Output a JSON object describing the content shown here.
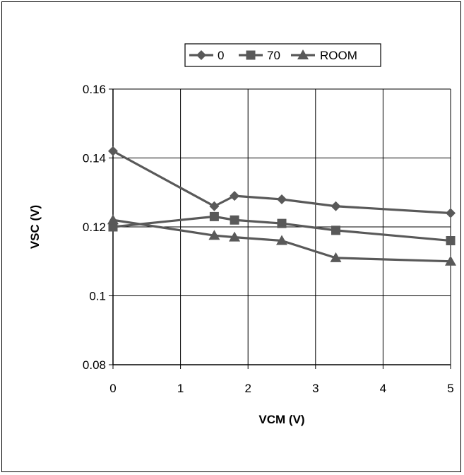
{
  "chart_data": {
    "type": "line",
    "title": "",
    "xlabel": "VCM (V)",
    "ylabel": "VSC (V)",
    "xlim": [
      0,
      5
    ],
    "ylim": [
      0.08,
      0.16
    ],
    "x_ticks": [
      "0",
      "1",
      "2",
      "3",
      "4",
      "5"
    ],
    "y_ticks": [
      "0.08",
      "0.1",
      "0.12",
      "0.14",
      "0.16"
    ],
    "grid": true,
    "legend_placement": "top",
    "series": [
      {
        "name": "0",
        "marker": "diamond",
        "color": "#595959",
        "x": [
          0,
          1.5,
          1.8,
          2.5,
          3.3,
          5
        ],
        "y": [
          0.142,
          0.126,
          0.129,
          0.128,
          0.126,
          0.124
        ]
      },
      {
        "name": "70",
        "marker": "square",
        "color": "#595959",
        "x": [
          0,
          1.5,
          1.8,
          2.5,
          3.3,
          5
        ],
        "y": [
          0.12,
          0.123,
          0.122,
          0.121,
          0.119,
          0.116
        ]
      },
      {
        "name": "ROOM",
        "marker": "triangle",
        "color": "#595959",
        "x": [
          0,
          1.5,
          1.8,
          2.5,
          3.3,
          5
        ],
        "y": [
          0.122,
          0.1175,
          0.117,
          0.116,
          0.111,
          0.11
        ]
      }
    ]
  }
}
